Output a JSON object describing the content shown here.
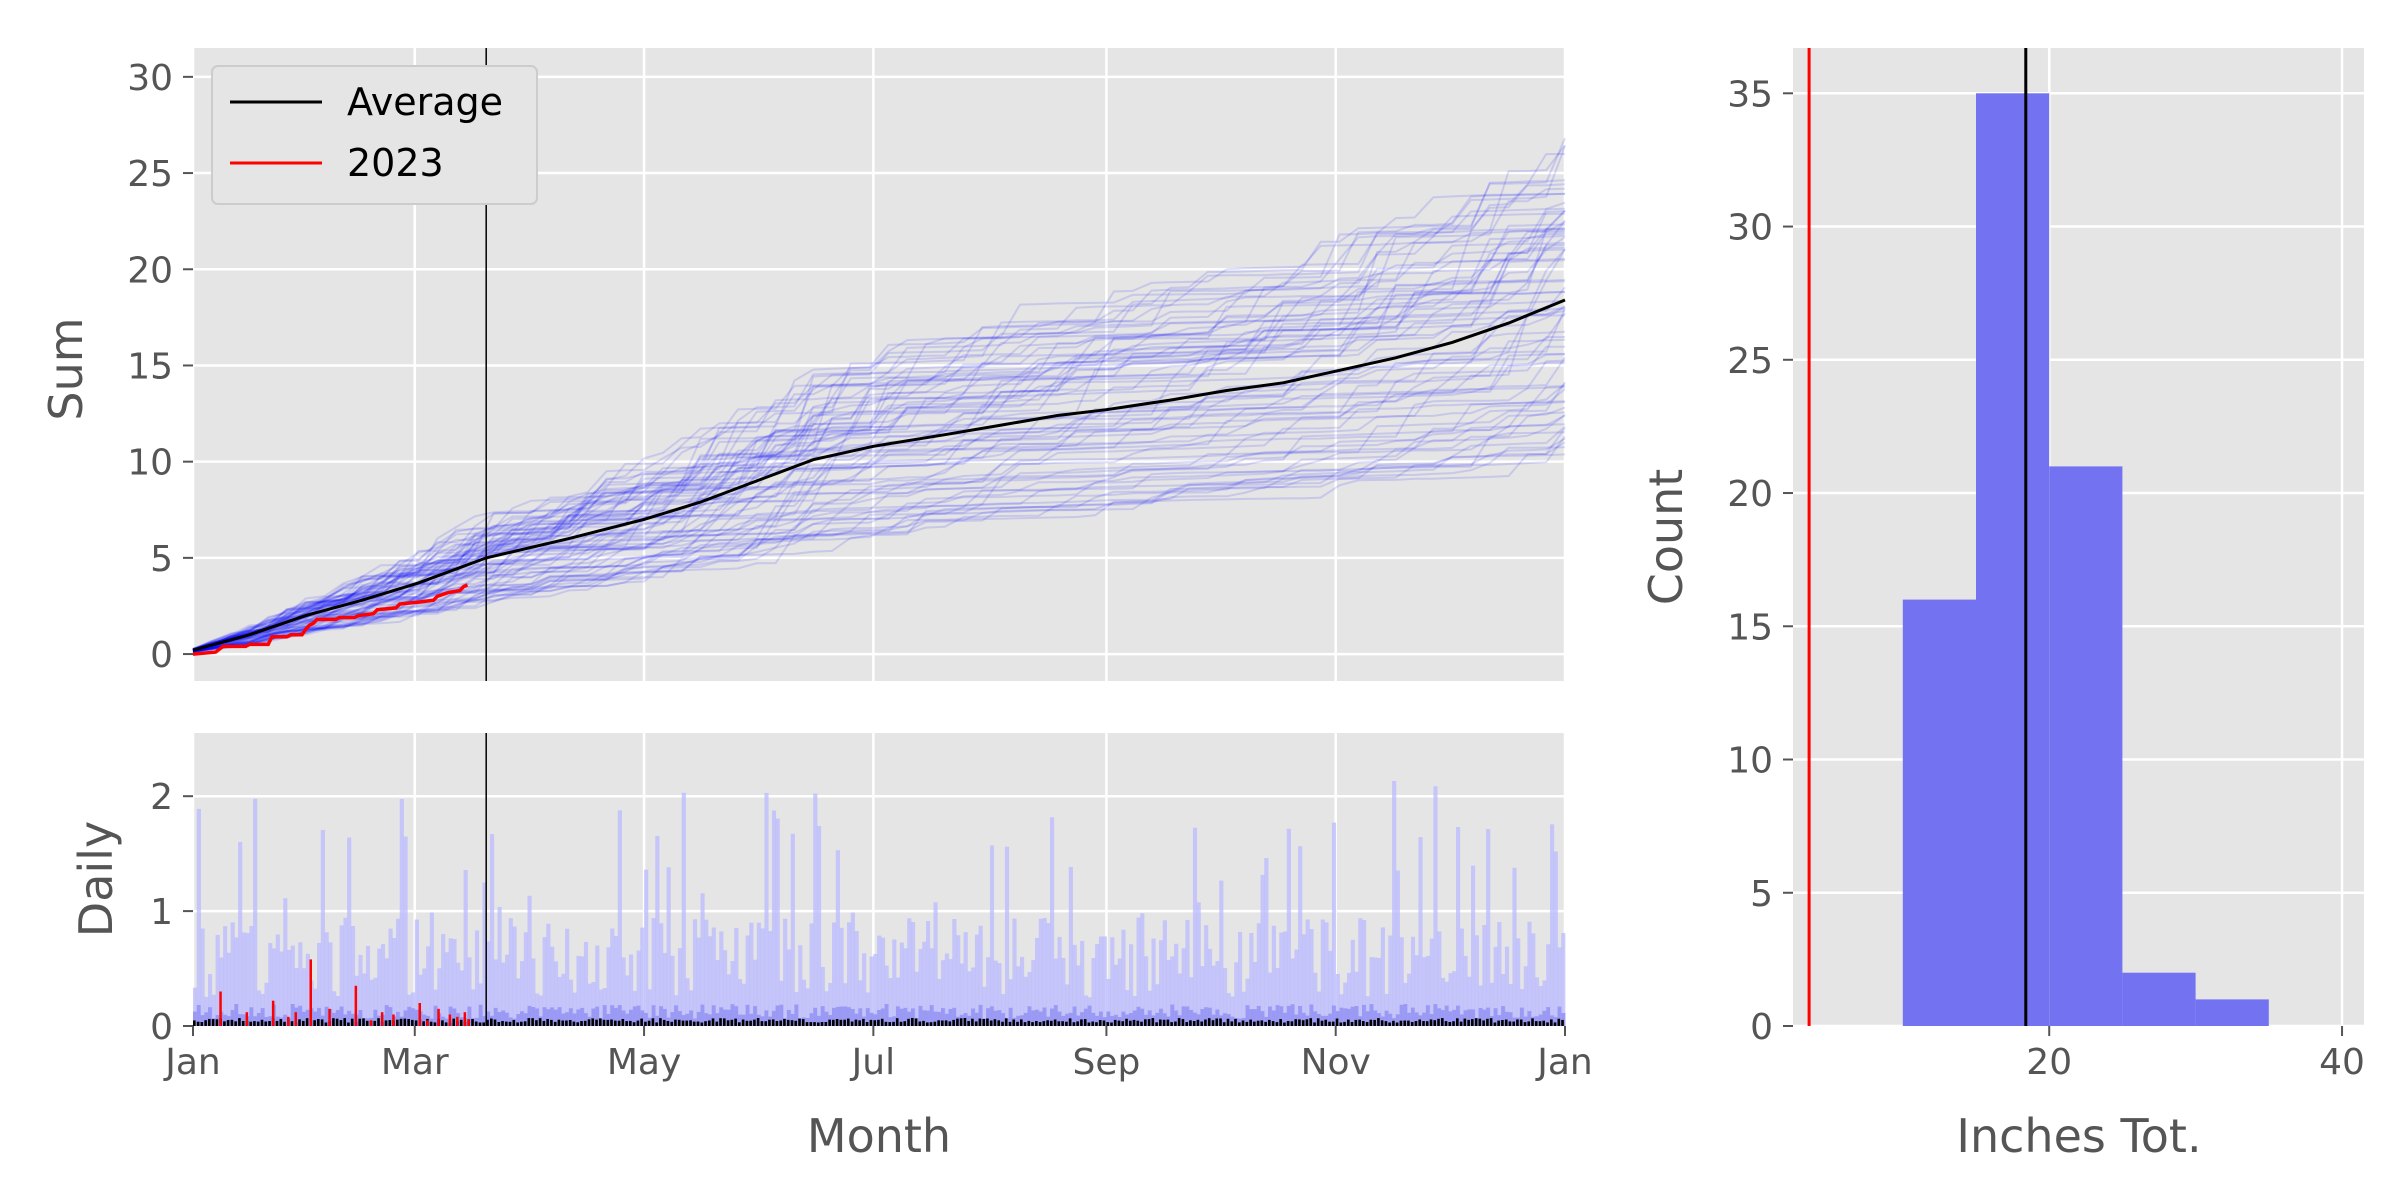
{
  "chart_data": [
    {
      "id": "cumulative",
      "type": "line",
      "title": "",
      "xlabel": "",
      "ylabel": "Sum",
      "xlim": [
        0,
        365
      ],
      "ylim": [
        -1.4,
        31.5
      ],
      "x_ticks": [
        {
          "label": "Jan",
          "day": 0
        },
        {
          "label": "Mar",
          "day": 59
        },
        {
          "label": "May",
          "day": 120
        },
        {
          "label": "Jul",
          "day": 181
        },
        {
          "label": "Sep",
          "day": 243
        },
        {
          "label": "Nov",
          "day": 304
        },
        {
          "label": "Jan",
          "day": 365
        }
      ],
      "y_ticks": [
        0,
        5,
        10,
        15,
        20,
        25,
        30
      ],
      "today_day": 78,
      "grid": true,
      "legend_position": "upper-left",
      "background_years": {
        "count": 75,
        "color": "#0000ff",
        "opacity": 0.13
      },
      "series": [
        {
          "name": "Average",
          "color": "#000000",
          "points": [
            [
              0,
              0.2
            ],
            [
              15,
              1.0
            ],
            [
              30,
              2.0
            ],
            [
              45,
              2.8
            ],
            [
              60,
              3.7
            ],
            [
              78,
              5.0
            ],
            [
              100,
              6.0
            ],
            [
              120,
              7.0
            ],
            [
              135,
              7.9
            ],
            [
              150,
              9.0
            ],
            [
              165,
              10.1
            ],
            [
              181,
              10.8
            ],
            [
              200,
              11.4
            ],
            [
              215,
              11.9
            ],
            [
              230,
              12.4
            ],
            [
              243,
              12.7
            ],
            [
              260,
              13.2
            ],
            [
              275,
              13.7
            ],
            [
              290,
              14.1
            ],
            [
              304,
              14.7
            ],
            [
              320,
              15.4
            ],
            [
              335,
              16.2
            ],
            [
              350,
              17.2
            ],
            [
              365,
              18.4
            ]
          ]
        },
        {
          "name": "2023",
          "color": "#ff0000",
          "points": [
            [
              0,
              0.0
            ],
            [
              6,
              0.1
            ],
            [
              8,
              0.4
            ],
            [
              14,
              0.4
            ],
            [
              15,
              0.5
            ],
            [
              20,
              0.5
            ],
            [
              21,
              0.9
            ],
            [
              25,
              0.9
            ],
            [
              26,
              1.0
            ],
            [
              29,
              1.0
            ],
            [
              30,
              1.3
            ],
            [
              31,
              1.5
            ],
            [
              32,
              1.6
            ],
            [
              33,
              1.8
            ],
            [
              38,
              1.8
            ],
            [
              39,
              1.9
            ],
            [
              43,
              1.9
            ],
            [
              44,
              2.0
            ],
            [
              48,
              2.1
            ],
            [
              49,
              2.3
            ],
            [
              54,
              2.4
            ],
            [
              55,
              2.6
            ],
            [
              60,
              2.7
            ],
            [
              64,
              2.8
            ],
            [
              65,
              3.0
            ],
            [
              68,
              3.2
            ],
            [
              71,
              3.3
            ],
            [
              72,
              3.5
            ],
            [
              73,
              3.6
            ]
          ]
        }
      ]
    },
    {
      "id": "daily",
      "type": "bar",
      "xlabel": "Month",
      "ylabel": "Daily",
      "xlim": [
        0,
        365
      ],
      "ylim": [
        0,
        2.55
      ],
      "y_ticks": [
        0,
        1,
        2
      ],
      "x_ticks": [
        {
          "label": "Jan",
          "day": 0
        },
        {
          "label": "Mar",
          "day": 59
        },
        {
          "label": "May",
          "day": 120
        },
        {
          "label": "Jul",
          "day": 181
        },
        {
          "label": "Sep",
          "day": 243
        },
        {
          "label": "Nov",
          "day": 304
        },
        {
          "label": "Jan",
          "day": 365
        }
      ],
      "today_day": 78,
      "grid": true,
      "background_bars_color": "#b9b9ff",
      "average_bars_color": "#000000",
      "series_2023": {
        "name": "2023",
        "color": "#ff0000",
        "days": [
          7,
          14,
          21,
          25,
          27,
          31,
          36,
          43,
          47,
          50,
          53,
          60,
          62,
          65,
          68,
          70,
          72,
          73
        ],
        "values": [
          0.3,
          0.12,
          0.22,
          0.08,
          0.12,
          0.58,
          0.15,
          0.35,
          0.05,
          0.12,
          0.1,
          0.2,
          0.05,
          0.15,
          0.1,
          0.08,
          0.12,
          0.06
        ]
      }
    },
    {
      "id": "histogram",
      "type": "bar",
      "xlabel": "Inches Tot.",
      "ylabel": "Count",
      "xlim": [
        2.5,
        41.5
      ],
      "ylim": [
        0,
        36.7
      ],
      "x_ticks": [
        20,
        40
      ],
      "y_ticks": [
        0,
        5,
        10,
        15,
        20,
        25,
        30,
        35
      ],
      "bins": [
        {
          "start": 10,
          "end": 15,
          "count": 16
        },
        {
          "start": 15,
          "end": 20,
          "count": 35
        },
        {
          "start": 20,
          "end": 25,
          "count": 21
        },
        {
          "start": 25,
          "end": 30,
          "count": 2
        },
        {
          "start": 30,
          "end": 35,
          "count": 1
        }
      ],
      "bar_color": "#7373f2",
      "average_line": {
        "value": 18.4,
        "color": "#000000"
      },
      "current_line": {
        "value": 3.6,
        "color": "#ff0000"
      },
      "grid": true
    }
  ]
}
